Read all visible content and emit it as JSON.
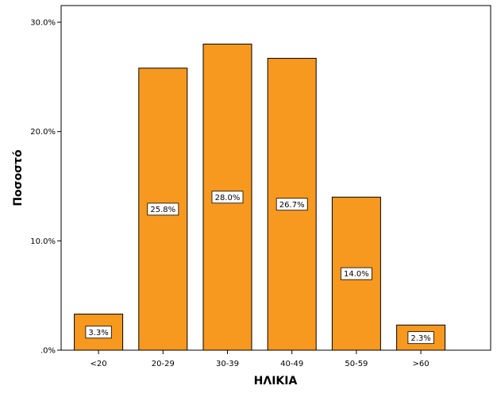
{
  "chart_data": {
    "type": "bar",
    "categories": [
      "<20",
      "20-29",
      "30-39",
      "40-49",
      "50-59",
      ">60"
    ],
    "values": [
      3.3,
      25.8,
      28.0,
      26.7,
      14.0,
      2.3
    ],
    "data_labels": [
      "3.3%",
      "25.8%",
      "28.0%",
      "26.7%",
      "14.0%",
      "2.3%"
    ],
    "title": "",
    "xlabel": "ΗΛΙΚΙΑ",
    "ylabel": "Ποσοστό",
    "ylim": [
      0,
      30
    ],
    "yticks": [
      {
        "value": 0,
        "label": ".0%"
      },
      {
        "value": 10,
        "label": "10.0%"
      },
      {
        "value": 20,
        "label": "20.0%"
      },
      {
        "value": 30,
        "label": "30.0%"
      }
    ],
    "grid": false,
    "bar_color": "#f7991f",
    "bar_outline_color": "#000000"
  }
}
